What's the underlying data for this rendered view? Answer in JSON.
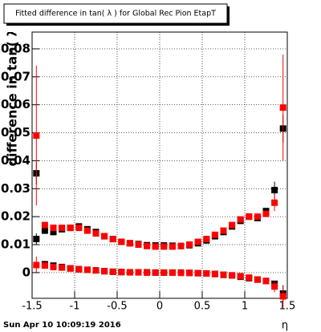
{
  "chart_data": {
    "type": "scatter",
    "title": "Fitted difference in tan( λ ) for Global Rec Pion EtapT",
    "y_label": "difference in tan( λ )",
    "x_label": "η",
    "footer": "Sun Apr 10 10:09:19 2016",
    "xlim": [
      -1.5,
      1.5
    ],
    "ylim": [
      -0.0092,
      0.086
    ],
    "xticks": [
      -1.5,
      -1,
      -0.5,
      0,
      0.5,
      1,
      1.5
    ],
    "yticks": [
      0,
      0.01,
      0.02,
      0.03,
      0.04,
      0.05,
      0.06,
      0.07,
      0.08
    ],
    "grid": true,
    "x": [
      -1.45,
      -1.35,
      -1.25,
      -1.15,
      -1.05,
      -0.95,
      -0.85,
      -0.75,
      -0.65,
      -0.55,
      -0.45,
      -0.35,
      -0.25,
      -0.15,
      -0.05,
      0.05,
      0.15,
      0.25,
      0.35,
      0.45,
      0.55,
      0.65,
      0.75,
      0.85,
      0.95,
      1.05,
      1.15,
      1.25,
      1.35,
      1.45
    ],
    "series": [
      {
        "color": "#000000",
        "values": [
          0.0355,
          0.015,
          0.0145,
          0.0155,
          0.016,
          0.0165,
          0.0155,
          0.0145,
          0.013,
          0.012,
          0.011,
          0.0105,
          0.0102,
          0.0098,
          0.0097,
          0.0097,
          0.0096,
          0.0095,
          0.0098,
          0.0105,
          0.0115,
          0.013,
          0.0145,
          0.0165,
          0.0185,
          0.02,
          0.0195,
          0.022,
          0.0295,
          0.0515
        ],
        "errors": [
          0.004,
          0.0008,
          0.0005,
          0.0005,
          0.0005,
          0.0005,
          0.0005,
          0.0005,
          0.0005,
          0.0005,
          0.0005,
          0.0005,
          0.0005,
          0.0005,
          0.0005,
          0.0005,
          0.0005,
          0.0005,
          0.0005,
          0.0005,
          0.0005,
          0.0005,
          0.0005,
          0.0005,
          0.0005,
          0.0005,
          0.0005,
          0.0008,
          0.003,
          0.005
        ]
      },
      {
        "color": "#ff0000",
        "values": [
          0.049,
          0.017,
          0.016,
          0.016,
          0.016,
          0.016,
          0.015,
          0.014,
          0.013,
          0.012,
          0.011,
          0.0105,
          0.01,
          0.0095,
          0.0093,
          0.0093,
          0.0093,
          0.0095,
          0.01,
          0.011,
          0.012,
          0.0135,
          0.015,
          0.017,
          0.019,
          0.02,
          0.02,
          0.021,
          0.025,
          0.059
        ],
        "errors": [
          0.025,
          0.0008,
          0.0005,
          0.0005,
          0.0005,
          0.0005,
          0.0005,
          0.0005,
          0.0005,
          0.0005,
          0.0005,
          0.0005,
          0.0005,
          0.0005,
          0.0005,
          0.0005,
          0.0005,
          0.0005,
          0.0005,
          0.0005,
          0.0005,
          0.0005,
          0.0005,
          0.0005,
          0.0005,
          0.0005,
          0.0005,
          0.0008,
          0.003,
          0.019
        ]
      },
      {
        "color": "#000000",
        "values": [
          0.012,
          0.003,
          0.0025,
          0.002,
          0.0015,
          0.0012,
          0.001,
          0.0008,
          0.0005,
          0.0003,
          0.0002,
          0.0001,
          0.0001,
          0.0001,
          0.0,
          0.0,
          0.0,
          0.0,
          -0.0001,
          -0.0002,
          -0.0003,
          -0.0005,
          -0.0008,
          -0.001,
          -0.0015,
          -0.002,
          -0.0025,
          -0.003,
          -0.004,
          -0.0075
        ],
        "errors": [
          0.002,
          0.0005,
          0.0003,
          0.0003,
          0.0003,
          0.0003,
          0.0003,
          0.0003,
          0.0003,
          0.0003,
          0.0003,
          0.0003,
          0.0003,
          0.0003,
          0.0003,
          0.0003,
          0.0003,
          0.0003,
          0.0003,
          0.0003,
          0.0003,
          0.0003,
          0.0003,
          0.0003,
          0.0003,
          0.0003,
          0.0003,
          0.0005,
          0.001,
          0.003
        ]
      },
      {
        "color": "#ff0000",
        "values": [
          0.0027,
          0.0025,
          0.002,
          0.0018,
          0.0015,
          0.0012,
          0.001,
          0.0008,
          0.0005,
          0.0003,
          0.0002,
          0.0001,
          0.0001,
          0.0,
          0.0,
          0.0,
          0.0,
          -0.0001,
          -0.0001,
          -0.0002,
          -0.0003,
          -0.0005,
          -0.0008,
          -0.001,
          -0.0013,
          -0.0018,
          -0.0025,
          -0.003,
          -0.005,
          -0.0085
        ],
        "errors": [
          0.003,
          0.0005,
          0.0003,
          0.0003,
          0.0003,
          0.0003,
          0.0003,
          0.0003,
          0.0003,
          0.0003,
          0.0003,
          0.0003,
          0.0003,
          0.0003,
          0.0003,
          0.0003,
          0.0003,
          0.0003,
          0.0003,
          0.0003,
          0.0003,
          0.0003,
          0.0003,
          0.0003,
          0.0003,
          0.0003,
          0.0003,
          0.0005,
          0.002,
          0.004
        ]
      }
    ]
  }
}
